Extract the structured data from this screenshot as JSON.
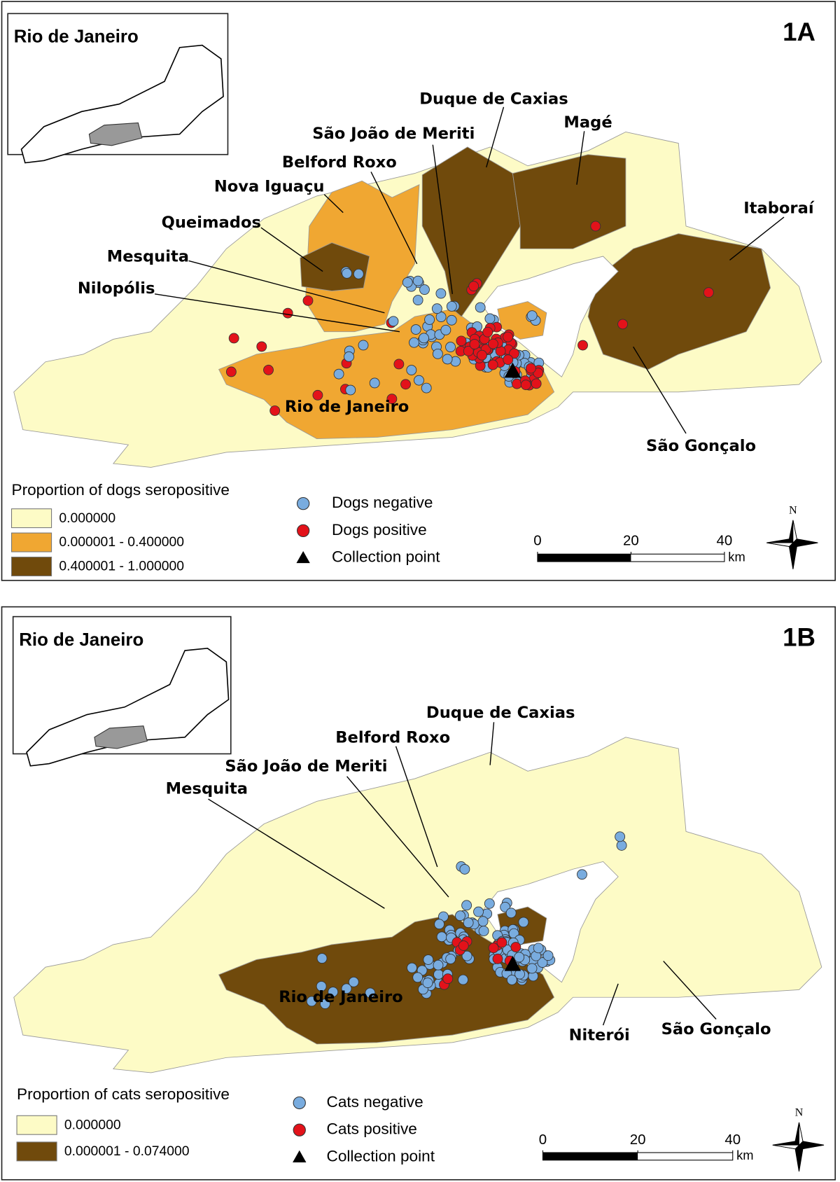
{
  "panels": [
    {
      "label": "1A",
      "inset_title": "Rio de Janeiro",
      "places": [
        "Duque de Caxias",
        "São João de Meriti",
        "Belford Roxo",
        "Magé",
        "Nova Iguaçu",
        "Itaboraí",
        "Queimados",
        "Mesquita",
        "Nilopólis",
        "Rio de Janeiro",
        "São Gonçalo"
      ],
      "legend_title": "Proportion of dogs seropositive",
      "classes": [
        {
          "label": "0.000000",
          "color": "#fdfbc6"
        },
        {
          "label": "0.000001 - 0.400000",
          "color": "#f0a732"
        },
        {
          "label": "0.400001 - 1.000000",
          "color": "#704a0c"
        }
      ],
      "points": [
        {
          "label": "Dogs negative",
          "color": "#79acdf"
        },
        {
          "label": "Dogs positive",
          "color": "#e3121a"
        },
        {
          "label": "Collection point",
          "color": "#000000"
        }
      ],
      "scale": {
        "ticks": [
          0,
          20,
          40
        ],
        "unit": "km"
      },
      "north": "N"
    },
    {
      "label": "1B",
      "inset_title": "Rio de Janeiro",
      "places": [
        "Duque de Caxias",
        "Belford Roxo",
        "São João de Meriti",
        "Mesquita",
        "Rio de Janeiro",
        "Niterói",
        "São Gonçalo"
      ],
      "legend_title": "Proportion of cats seropositive",
      "classes": [
        {
          "label": "0.000000",
          "color": "#fdfbc6"
        },
        {
          "label": "0.000001 - 0.074000",
          "color": "#704a0c"
        }
      ],
      "points": [
        {
          "label": "Cats negative",
          "color": "#79acdf"
        },
        {
          "label": "Cats positive",
          "color": "#e3121a"
        },
        {
          "label": "Collection point",
          "color": "#000000"
        }
      ],
      "scale": {
        "ticks": [
          0,
          20,
          40
        ],
        "unit": "km"
      },
      "north": "N"
    }
  ]
}
